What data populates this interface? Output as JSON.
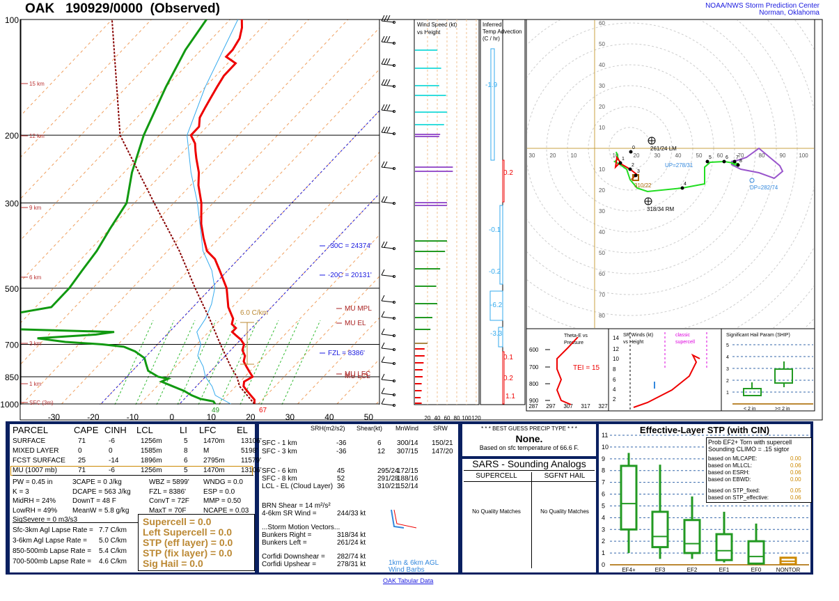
{
  "header": {
    "station": "OAK",
    "time": "190929/0000",
    "type": "(Observed)",
    "org1": "NOAA/NWS Storm Prediction Center",
    "org2": "Norman, Oklahoma"
  },
  "skewt": {
    "p_labels": [
      "100",
      "200",
      "300",
      "500",
      "700",
      "850",
      "1000"
    ],
    "t_labels": [
      "-30",
      "-20",
      "-10",
      "0",
      "10",
      "20",
      "30",
      "40",
      "50"
    ],
    "height_labels": [
      "15 km",
      "12 km",
      "9 km",
      "6 km",
      "3 km",
      "1 km",
      "SFC (3m)"
    ],
    "annotations": {
      "m30": "-30C = 24374'",
      "m20": "-20C = 20131'",
      "mpl": "MU MPL",
      "el": "MU EL",
      "fzl": "FZL = 8386'",
      "lfc": "MU LFC",
      "lcl": "MU LCL",
      "lapse": "6.0 C/km",
      "sfc_td": "49",
      "sfc_t": "67"
    }
  },
  "wind_panel": {
    "title1": "Wind Speed (kt)",
    "title2": "vs Height",
    "x_labels": [
      "20",
      "40",
      "60",
      "80",
      "100",
      "120"
    ]
  },
  "advection": {
    "title1": "Inferred",
    "title2": "Temp Advection",
    "title3": "(C / hr)",
    "values": [
      "-1.9",
      "0.2",
      "-0.1",
      "-0.2",
      "-6.2",
      "-3.3",
      "0.1",
      "0.2",
      "1.1"
    ]
  },
  "hodograph": {
    "x_labels": [
      "30",
      "20",
      "10",
      "10",
      "20",
      "30",
      "40",
      "50",
      "60",
      "70",
      "80",
      "90",
      "100"
    ],
    "y_labels": [
      "60",
      "50",
      "40",
      "30",
      "20",
      "10",
      "10",
      "20",
      "30",
      "40",
      "50",
      "60",
      "70",
      "80"
    ],
    "lm": "261/24 LM",
    "up": "UP=278/31",
    "rm": "318/34 RM",
    "dp": "DP=282/74",
    "mean": "310/22",
    "pts": [
      "0",
      "1",
      "2",
      "3",
      "4",
      "5",
      "6",
      "7",
      "8"
    ]
  },
  "theta": {
    "title1": "Theta-E vs",
    "title2": "Pressure",
    "p": [
      "600",
      "700",
      "800",
      "900"
    ],
    "x": [
      "287",
      "297",
      "307",
      "317",
      "327"
    ],
    "tei": "TEI = 15"
  },
  "srwinds": {
    "title1": "SR Winds (kt)",
    "title2": "vs Height",
    "classic1": "classic",
    "classic2": "supercell",
    "y": [
      "14",
      "12",
      "10",
      "8",
      "6",
      "4",
      "2"
    ]
  },
  "ship": {
    "title": "Significant Hail Param (SHIP)",
    "y": [
      "5",
      "4",
      "3",
      "2",
      "1"
    ],
    "lt": "< 2 in",
    "ge": ">= 2 in"
  },
  "parcel_table": {
    "headers": [
      "PARCEL",
      "CAPE",
      "CINH",
      "LCL",
      "LI",
      "LFC",
      "EL"
    ],
    "rows": [
      [
        "SURFACE",
        "71",
        "-6",
        "1256m",
        "5",
        "1470m",
        "13106'"
      ],
      [
        "MIXED LAYER",
        "0",
        "0",
        "1585m",
        "8",
        "M",
        "5198'"
      ],
      [
        "FCST SURFACE",
        "25",
        "-14",
        "1896m",
        "6",
        "2795m",
        "11579'"
      ],
      [
        "MU  (1007 mb)",
        "71",
        "-6",
        "1256m",
        "5",
        "1470m",
        "13106'"
      ]
    ]
  },
  "indices": [
    [
      "PW = 0.45 in",
      "3CAPE = 0 J/kg",
      "WBZ = 5899'",
      "WNDG = 0.0"
    ],
    [
      "K = 3",
      "DCAPE = 563 J/kg",
      "FZL = 8386'",
      "ESP = 0.0"
    ],
    [
      "MidRH = 24%",
      "DownT = 48 F",
      "ConvT = 72F",
      "MMP = 0.50"
    ],
    [
      "LowRH = 49%",
      "MeanW = 5.8 g/kg",
      "MaxT = 70F",
      "NCAPE = 0.03"
    ],
    [
      "SigSevere = 0 m3/s3",
      "",
      "",
      ""
    ]
  ],
  "lapse": [
    [
      "Sfc-3km Agl Lapse Rate =",
      "7.7 C/km"
    ],
    [
      "3-6km Agl Lapse Rate =",
      "5.0 C/km"
    ],
    [
      "850-500mb Lapse Rate =",
      "5.4 C/km"
    ],
    [
      "700-500mb Lapse Rate =",
      "4.6 C/km"
    ]
  ],
  "composite": [
    "Supercell = 0.0",
    "Left Supercell = 0.0",
    "STP (eff layer) = 0.0",
    "STP (fix layer) = 0.0",
    "Sig Hail = 0.0"
  ],
  "kinematics": {
    "headers": [
      "SRH(m2/s2)",
      "Shear(kt)",
      "MnWind",
      "SRW"
    ],
    "rows": [
      [
        "SFC - 1 km",
        "-36",
        "6",
        "300/14",
        "150/21"
      ],
      [
        "SFC - 3 km",
        "-36",
        "12",
        "307/15",
        "147/20"
      ],
      [
        "SFC - 6 km",
        "45",
        "295/24",
        "172/15",
        ""
      ],
      [
        "SFC - 8 km",
        "52",
        "291/28",
        "188/16",
        ""
      ],
      [
        "LCL - EL (Cloud Layer)",
        "36",
        "310/21",
        "152/14",
        ""
      ]
    ],
    "brn": "BRN Shear =  14 m²/s²",
    "srwind46": "4-6km SR Wind =",
    "srwind46v": "244/33 kt",
    "smv": "...Storm Motion Vectors...",
    "motions": [
      [
        "Bunkers Right =",
        "318/34 kt"
      ],
      [
        "Bunkers Left =",
        "261/24 kt"
      ],
      [
        "Corfidi Downshear =",
        "282/74 kt"
      ],
      [
        "Corfidi Upshear =",
        "278/31 kt"
      ]
    ],
    "barbs1": "1km & 6km AGL",
    "barbs2": "Wind Barbs"
  },
  "precip": {
    "title": "* * * BEST GUESS PRECIP TYPE * * *",
    "value": "None.",
    "sub": "Based on sfc temperature of 66.6 F."
  },
  "sars": {
    "title": "SARS - Sounding Analogs",
    "col1": "SUPERCELL",
    "col2": "SGFNT HAIL",
    "nm": "No Quality Matches"
  },
  "stp": {
    "title": "Effective-Layer STP (with CIN)",
    "prob1": "Prob EF2+ Torn with supercell",
    "prob2": "Sounding CLIMO = .15 sigtor",
    "rows": [
      [
        "based on MLCAPE:",
        "0.00"
      ],
      [
        "based on MLLCL:",
        "0.06"
      ],
      [
        "based on ESRH:",
        "0.06"
      ],
      [
        "based on EBWD:",
        "0.00"
      ],
      [
        "based on STP_fixed:",
        "0.05"
      ],
      [
        "based on STP_effective:",
        "0.06"
      ]
    ],
    "y": [
      "11",
      "10",
      "9",
      "8",
      "7",
      "6",
      "5",
      "4",
      "3",
      "2",
      "1",
      "0"
    ],
    "cats": [
      "EF4+",
      "EF3",
      "EF2",
      "EF1",
      "EF0",
      "NONTOR"
    ]
  },
  "footer": "OAK Tabular Data",
  "colors": {
    "temp": "#ee0000",
    "dew": "#119911",
    "wetbulb": "#33aaee",
    "virtual": "#cc0000",
    "blue": "#1a1adf",
    "gold": "#bb8833",
    "cyan": "#33dddd",
    "purple": "#9955cc",
    "green": "#229922",
    "navy": "#0a2060"
  }
}
